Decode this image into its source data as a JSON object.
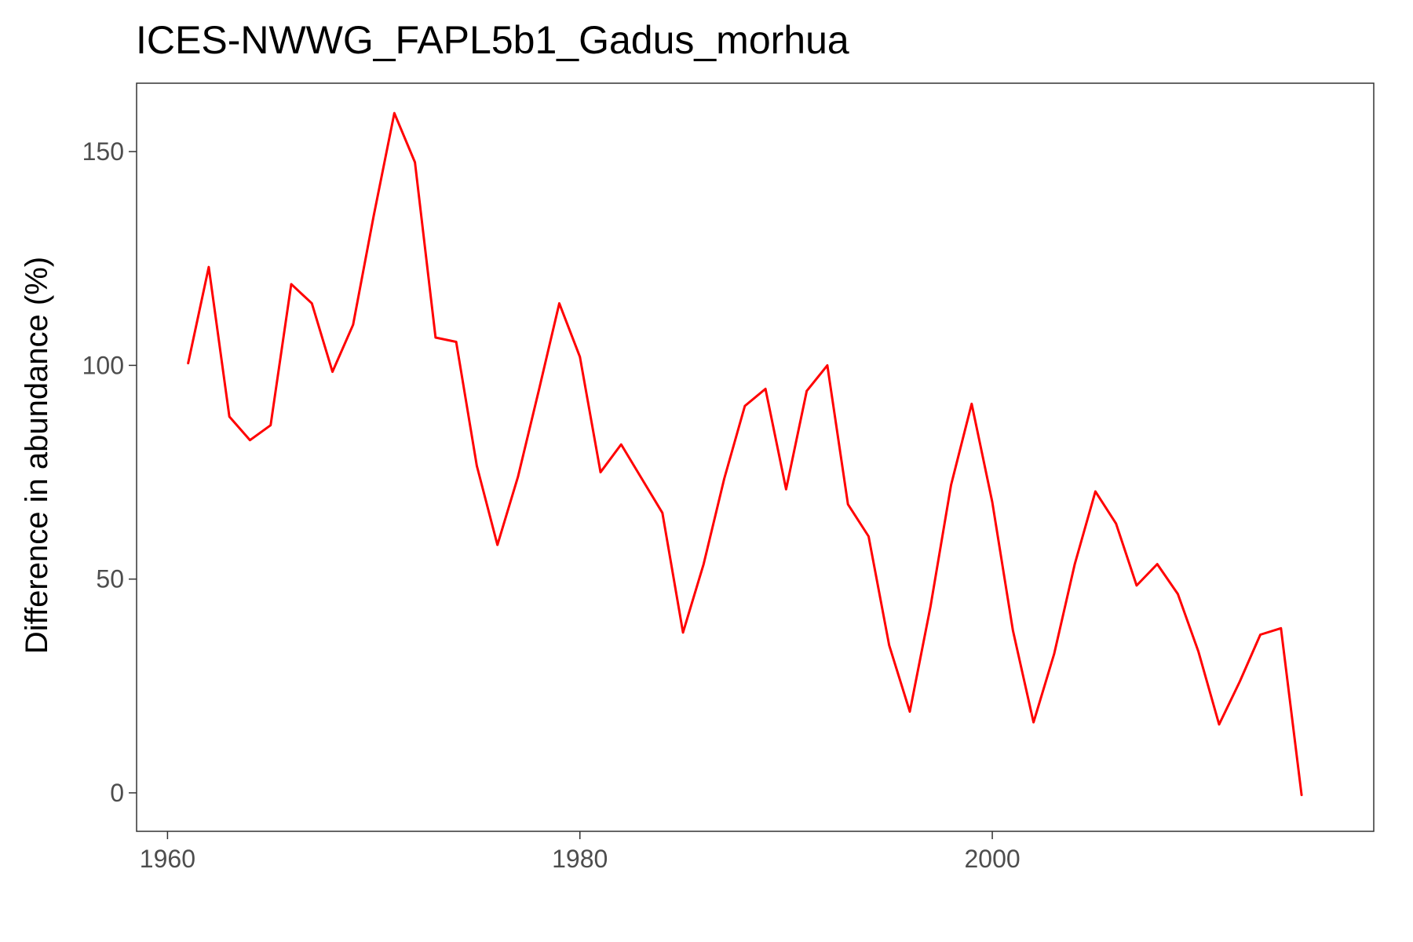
{
  "chart_data": {
    "type": "line",
    "title": "ICES-NWWG_FAPL5b1_Gadus_morhua",
    "xlabel": "",
    "ylabel": "Difference in abundance (%)",
    "xlim": [
      1958.5,
      2018.5
    ],
    "ylim": [
      -9,
      166
    ],
    "x_ticks": [
      1960,
      1980,
      2000
    ],
    "y_ticks": [
      0,
      50,
      100,
      150
    ],
    "grid": false,
    "x": [
      1961,
      1962,
      1963,
      1964,
      1965,
      1966,
      1967,
      1968,
      1969,
      1970,
      1971,
      1972,
      1973,
      1974,
      1975,
      1976,
      1977,
      1978,
      1979,
      1980,
      1981,
      1982,
      1983,
      1984,
      1985,
      1986,
      1987,
      1988,
      1989,
      1990,
      1991,
      1992,
      1993,
      1994,
      1995,
      1996,
      1997,
      1998,
      1999,
      2000,
      2001,
      2002,
      2003,
      2004,
      2005,
      2006,
      2007,
      2008,
      2009,
      2010,
      2011,
      2012,
      2013,
      2014,
      2015
    ],
    "series": [
      {
        "color": "#ff0000",
        "values": [
          100.5,
          123,
          88,
          82.5,
          86,
          119,
          114.5,
          98.5,
          109.5,
          135,
          159,
          147.5,
          106.5,
          105.5,
          76.5,
          58,
          74,
          94,
          114.5,
          102,
          75,
          81.5,
          73.5,
          65.5,
          37.5,
          53.5,
          73.5,
          90.5,
          94.5,
          71,
          94,
          100,
          67.5,
          60,
          34.5,
          19,
          43.5,
          72,
          91,
          68,
          38,
          16.5,
          32.5,
          53.5,
          70.5,
          63,
          48.5,
          53.5,
          46.5,
          33,
          16,
          26,
          37,
          38.5,
          -0.5
        ]
      }
    ]
  }
}
